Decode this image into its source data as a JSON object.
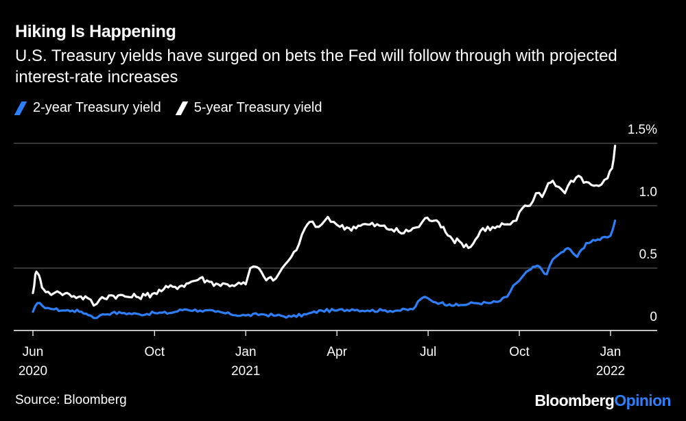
{
  "header": {
    "title": "Hiking Is Happening",
    "subtitle": "U.S. Treasury yields have surged on bets the Fed will follow through with projected interest-rate increases"
  },
  "legend": {
    "items": [
      {
        "label": "2-year Treasury yield",
        "color": "#2d7ff9"
      },
      {
        "label": "5-year Treasury yield",
        "color": "#ffffff"
      }
    ]
  },
  "footer": {
    "source": "Source: Bloomberg",
    "brand_part1": "Bloomberg",
    "brand_part2": "Opinion"
  },
  "chart_data": {
    "type": "line",
    "title": "Hiking Is Happening",
    "xlabel": "",
    "ylabel": "",
    "ylim": [
      0,
      1.5
    ],
    "yticks": [
      {
        "value": 0,
        "label": "0"
      },
      {
        "value": 0.5,
        "label": "0.5"
      },
      {
        "value": 1.0,
        "label": "1.0"
      },
      {
        "value": 1.5,
        "label": "1.5%"
      }
    ],
    "xlim_months": [
      0,
      19.5
    ],
    "xticks": [
      {
        "month": 0,
        "label": "Jun",
        "year": "2020"
      },
      {
        "month": 4,
        "label": "Oct",
        "year": ""
      },
      {
        "month": 7,
        "label": "Jan",
        "year": "2021"
      },
      {
        "month": 10,
        "label": "Apr",
        "year": ""
      },
      {
        "month": 13,
        "label": "Jul",
        "year": ""
      },
      {
        "month": 16,
        "label": "Oct",
        "year": ""
      },
      {
        "month": 19,
        "label": "Jan",
        "year": "2022"
      }
    ],
    "series": [
      {
        "name": "2-year Treasury yield",
        "color": "#2d7ff9",
        "x": [
          0,
          0.15,
          0.3,
          0.5,
          0.7,
          1.0,
          1.3,
          1.6,
          1.9,
          2.1,
          2.3,
          2.6,
          3.0,
          3.5,
          4.0,
          4.5,
          5.0,
          5.5,
          6.0,
          6.5,
          7.0,
          7.5,
          8.0,
          8.5,
          9.0,
          9.5,
          10.0,
          10.5,
          11.0,
          11.5,
          12.0,
          12.5,
          12.75,
          12.9,
          13.1,
          13.4,
          13.7,
          14.0,
          14.5,
          15.0,
          15.3,
          15.6,
          15.8,
          16.0,
          16.3,
          16.6,
          16.9,
          17.1,
          17.3,
          17.6,
          17.9,
          18.2,
          18.5,
          18.8,
          19.0,
          19.15
        ],
        "values": [
          0.15,
          0.22,
          0.2,
          0.18,
          0.17,
          0.16,
          0.16,
          0.15,
          0.12,
          0.1,
          0.13,
          0.14,
          0.14,
          0.13,
          0.14,
          0.14,
          0.17,
          0.16,
          0.15,
          0.13,
          0.12,
          0.13,
          0.12,
          0.11,
          0.13,
          0.16,
          0.16,
          0.17,
          0.16,
          0.16,
          0.16,
          0.17,
          0.25,
          0.27,
          0.24,
          0.22,
          0.21,
          0.2,
          0.22,
          0.22,
          0.23,
          0.27,
          0.36,
          0.4,
          0.48,
          0.52,
          0.45,
          0.57,
          0.61,
          0.66,
          0.59,
          0.7,
          0.72,
          0.75,
          0.76,
          0.88
        ]
      },
      {
        "name": "5-year Treasury yield",
        "color": "#ffffff",
        "x": [
          0,
          0.08,
          0.15,
          0.25,
          0.35,
          0.5,
          0.7,
          0.9,
          1.2,
          1.5,
          1.8,
          2.0,
          2.2,
          2.5,
          2.8,
          3.1,
          3.4,
          3.7,
          4.0,
          4.3,
          4.6,
          4.9,
          5.2,
          5.5,
          5.8,
          6.1,
          6.4,
          6.7,
          7.0,
          7.15,
          7.35,
          7.6,
          7.9,
          8.1,
          8.3,
          8.5,
          8.75,
          8.95,
          9.1,
          9.3,
          9.5,
          9.7,
          9.9,
          10.1,
          10.4,
          10.7,
          11.0,
          11.4,
          11.8,
          12.2,
          12.5,
          12.7,
          12.9,
          13.2,
          13.5,
          13.8,
          14.1,
          14.4,
          14.8,
          15.2,
          15.5,
          15.7,
          15.9,
          16.1,
          16.35,
          16.55,
          16.75,
          16.95,
          17.1,
          17.3,
          17.5,
          17.7,
          17.95,
          18.2,
          18.45,
          18.7,
          18.9,
          19.05,
          19.15
        ],
        "values": [
          0.3,
          0.45,
          0.46,
          0.4,
          0.33,
          0.31,
          0.3,
          0.3,
          0.29,
          0.27,
          0.26,
          0.2,
          0.25,
          0.28,
          0.28,
          0.27,
          0.27,
          0.28,
          0.3,
          0.33,
          0.35,
          0.36,
          0.39,
          0.42,
          0.39,
          0.37,
          0.37,
          0.37,
          0.37,
          0.5,
          0.51,
          0.43,
          0.4,
          0.46,
          0.53,
          0.59,
          0.69,
          0.82,
          0.87,
          0.83,
          0.85,
          0.91,
          0.87,
          0.83,
          0.82,
          0.84,
          0.85,
          0.84,
          0.81,
          0.78,
          0.82,
          0.83,
          0.9,
          0.88,
          0.83,
          0.73,
          0.7,
          0.67,
          0.82,
          0.82,
          0.85,
          0.85,
          0.88,
          0.98,
          1.0,
          1.1,
          1.07,
          1.18,
          1.2,
          1.15,
          1.1,
          1.2,
          1.24,
          1.19,
          1.16,
          1.17,
          1.22,
          1.3,
          1.48
        ]
      }
    ]
  }
}
